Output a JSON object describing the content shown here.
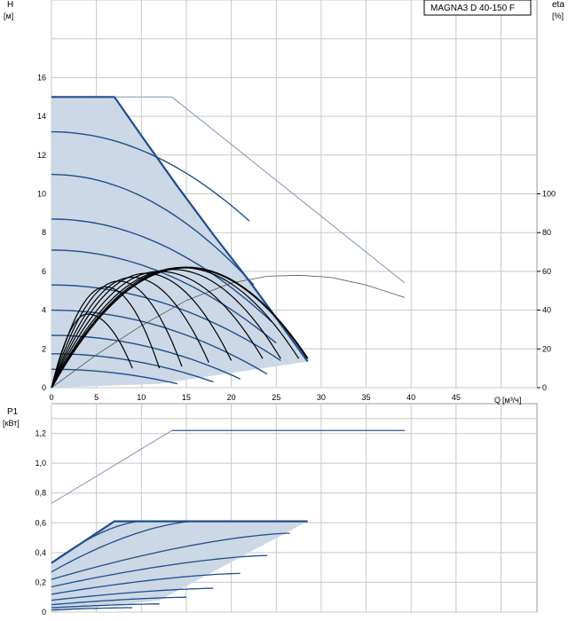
{
  "model_label": "MAGNA3 D 40-150 F",
  "colors": {
    "grid": "#c8c8c8",
    "fill": "#ccd8e6",
    "curve": "#1f4e8c",
    "thin": "#7f93ae",
    "eta": "#000000"
  },
  "chart_data": [
    {
      "type": "line",
      "title": "",
      "ylabel": "H",
      "yunit": "[м]",
      "y2label": "eta",
      "y2unit": "[%]",
      "xlabel": "Q",
      "xunit": "[м³/ч]",
      "xlim": [
        0,
        54
      ],
      "ylim": [
        0,
        20
      ],
      "y2lim": [
        0,
        200
      ],
      "xticks": [
        0,
        5,
        10,
        15,
        20,
        25,
        30,
        35,
        40,
        45
      ],
      "yticks": [
        0,
        2,
        4,
        6,
        8,
        10,
        12,
        14,
        16
      ],
      "y2ticks": [
        0,
        20,
        40,
        60,
        80,
        100
      ],
      "grid": true,
      "max_curve": [
        [
          0,
          15
        ],
        [
          7,
          15
        ],
        [
          10,
          13
        ],
        [
          14,
          10.4
        ],
        [
          18,
          7.9
        ],
        [
          22,
          5.5
        ],
        [
          25,
          3.6
        ],
        [
          28.5,
          1.35
        ]
      ],
      "operating_limit": [
        [
          28.5,
          1.35
        ],
        [
          12,
          0.2
        ],
        [
          0,
          0
        ]
      ],
      "speed_curves": [
        {
          "q0": 0,
          "h0": 13.2,
          "q1": 22,
          "h1": 8.6
        },
        {
          "q0": 0,
          "h0": 11,
          "q1": 22.5,
          "h1": 5.3
        },
        {
          "q0": 0,
          "h0": 8.7,
          "q1": 24.5,
          "h1": 3.4
        },
        {
          "q0": 0,
          "h0": 7.1,
          "q1": 25,
          "h1": 2.3
        },
        {
          "q0": 0,
          "h0": 5.3,
          "q1": 25.5,
          "h1": 1.4
        },
        {
          "q0": 0,
          "h0": 4.0,
          "q1": 24,
          "h1": 0.7
        },
        {
          "q0": 0,
          "h0": 2.7,
          "q1": 21,
          "h1": 0.45
        },
        {
          "q0": 0,
          "h0": 1.75,
          "q1": 18,
          "h1": 0.3
        },
        {
          "q0": 0,
          "h0": 0.95,
          "q1": 14,
          "h1": 0.2
        }
      ],
      "max_curve_extension": [
        [
          7,
          15
        ],
        [
          13.4,
          15
        ],
        [
          39.3,
          5.4
        ]
      ],
      "system_curve": [
        [
          0,
          0
        ],
        [
          5,
          1.7
        ],
        [
          10,
          3.2
        ],
        [
          15,
          4.5
        ],
        [
          20,
          5.4
        ],
        [
          24,
          5.75
        ],
        [
          27.5,
          5.8
        ],
        [
          31,
          5.7
        ],
        [
          35,
          5.3
        ],
        [
          39.3,
          4.65
        ]
      ],
      "eta_curves": [
        {
          "q_end": 9,
          "eta_end": 10
        },
        {
          "q_end": 12,
          "eta_end": 10
        },
        {
          "q_end": 14.5,
          "eta_end": 11
        },
        {
          "q_end": 17.5,
          "eta_end": 13
        },
        {
          "q_end": 20,
          "eta_end": 14
        },
        {
          "q_end": 23.5,
          "eta_end": 15
        },
        {
          "q_end": 25.5,
          "eta_end": 15
        },
        {
          "q_end": 27.5,
          "eta_end": 15
        },
        {
          "q_end": 28.5,
          "eta_end": 15
        }
      ],
      "eta_peak_q": [
        4,
        6,
        7.5,
        9,
        10.5,
        12,
        13.5,
        14.5,
        15
      ],
      "eta_peak": [
        38,
        52,
        55,
        57,
        59,
        60,
        61,
        62,
        62
      ]
    },
    {
      "type": "line",
      "title": "",
      "ylabel": "P1",
      "yunit": "[кВт]",
      "xlim": [
        0,
        54
      ],
      "ylim": [
        0,
        1.4
      ],
      "yticks": [
        "0",
        "0,2",
        "0,4",
        "0,6",
        "0,8",
        "1,0",
        "1,2"
      ],
      "ytick_values": [
        0,
        0.2,
        0.4,
        0.6,
        0.8,
        1.0,
        1.2
      ],
      "grid": true,
      "max_power": [
        [
          0,
          0.33
        ],
        [
          7,
          0.61
        ],
        [
          28.5,
          0.61
        ]
      ],
      "max_power_extension": [
        [
          0,
          0.73
        ],
        [
          13.4,
          1.22
        ],
        [
          39.3,
          1.22
        ]
      ],
      "power_curves": [
        {
          "q_start": 10,
          "p_start": 0.61,
          "q_end": 10,
          "p_end": 0.61,
          "p0": 0.33
        },
        {
          "q_start": 16,
          "p_start": 0.61,
          "q_end": 16,
          "p_end": 0.61,
          "p0": 0.27
        },
        {
          "q_start": 0,
          "p_start": 0.22,
          "q_end": 26.5,
          "p_end": 0.53
        },
        {
          "q_start": 0,
          "p_start": 0.17,
          "q_end": 24,
          "p_end": 0.38
        },
        {
          "q_start": 0,
          "p_start": 0.12,
          "q_end": 21,
          "p_end": 0.26
        },
        {
          "q_start": 0,
          "p_start": 0.08,
          "q_end": 18,
          "p_end": 0.16
        },
        {
          "q_start": 0,
          "p_start": 0.05,
          "q_end": 15,
          "p_end": 0.1
        },
        {
          "q_start": 0,
          "p_start": 0.03,
          "q_end": 12,
          "p_end": 0.055
        },
        {
          "q_start": 0,
          "p_start": 0.015,
          "q_end": 9,
          "p_end": 0.03
        }
      ]
    }
  ]
}
